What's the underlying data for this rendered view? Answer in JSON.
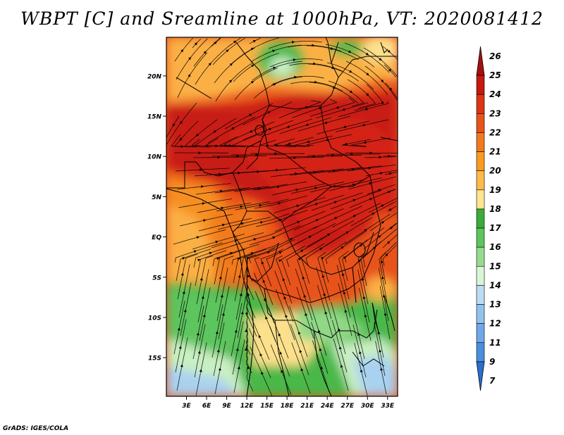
{
  "title": "WBPT [C] and Sreamline at 1000hPa, VT: 2020081412",
  "credit": "GrADS: IGES/COLA",
  "map": {
    "lat_labels": [
      "20N",
      "15N",
      "10N",
      "5N",
      "EQ",
      "5S",
      "10S",
      "15S"
    ],
    "lat_values": [
      20,
      15,
      10,
      5,
      0,
      -5,
      -10,
      -15
    ],
    "lon_labels": [
      "3E",
      "6E",
      "9E",
      "12E",
      "15E",
      "18E",
      "21E",
      "24E",
      "27E",
      "30E",
      "33E"
    ],
    "lon_values": [
      3,
      6,
      9,
      12,
      15,
      18,
      21,
      24,
      27,
      30,
      33
    ],
    "lon_range": [
      0,
      34.5
    ],
    "lat_range": [
      -19.8,
      24.8
    ]
  },
  "colorbar": {
    "labels": [
      "26",
      "25",
      "24",
      "23",
      "22",
      "21",
      "20",
      "19",
      "18",
      "17",
      "16",
      "15",
      "14",
      "13",
      "12",
      "11",
      "9",
      "7"
    ],
    "colors": [
      "#a50f0f",
      "#c41a0c",
      "#dc3514",
      "#e8531a",
      "#f27a1e",
      "#f99b20",
      "#fdbb49",
      "#fde591",
      "#3aac3a",
      "#5dc55d",
      "#97dc8e",
      "#d9f5d6",
      "#bcdcf3",
      "#92c3ee",
      "#6fa8e6",
      "#4a8fdc",
      "#2a6fd0"
    ]
  },
  "colors": {
    "red_dark": "#c81e12",
    "red": "#e23a16",
    "orange_red": "#ee5e1c",
    "orange": "#f68f22",
    "light_orange": "#fbb044",
    "tan": "#fde08c",
    "green": "#4ab84a",
    "light_green": "#90d886",
    "pale_green": "#c9efc2",
    "light_blue": "#a9d2f0",
    "blue": "#7fb6ea"
  }
}
